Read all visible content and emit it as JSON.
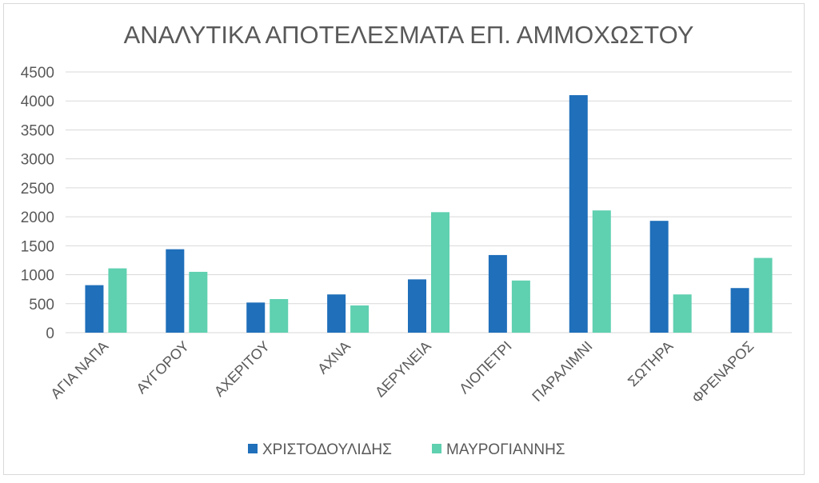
{
  "chart_data": {
    "type": "bar",
    "title": "ΑΝΑΛΥΤΙΚΑ ΑΠΟΤΕΛΕΣΜΑΤΑ ΕΠ. ΑΜΜΟΧΩΣΤΟΥ",
    "xlabel": "",
    "ylabel": "",
    "ylim": [
      0,
      4500
    ],
    "yticks": [
      0,
      500,
      1000,
      1500,
      2000,
      2500,
      3000,
      3500,
      4000,
      4500
    ],
    "grid": true,
    "legend_position": "bottom",
    "categories": [
      "ΑΓΙΑ ΝΑΠΑ",
      "ΑΥΓΟΡΟΥ",
      "ΑΧΕΡΙΤΟΥ",
      "ΑΧΝΑ",
      "ΔΕΡΥΝΕΙΑ",
      "ΛΙΟΠΕΤΡΙ",
      "ΠΑΡΑΛΙΜΝΙ",
      "ΣΩΤΗΡΑ",
      "ΦΡΕΝΑΡΟΣ"
    ],
    "series": [
      {
        "name": "ΧΡΙΣΤΟΔΟΥΛΙΔΗΣ",
        "color": "#1f6fba",
        "values": [
          820,
          1440,
          520,
          660,
          920,
          1340,
          4100,
          1930,
          770
        ]
      },
      {
        "name": "ΜΑΥΡΟΓΙΑΝΝΗΣ",
        "color": "#5fd0b0",
        "values": [
          1110,
          1050,
          580,
          470,
          2080,
          900,
          2110,
          660,
          1290
        ]
      }
    ]
  },
  "colors": {
    "grid": "#d9d9d9",
    "text": "#595959"
  }
}
